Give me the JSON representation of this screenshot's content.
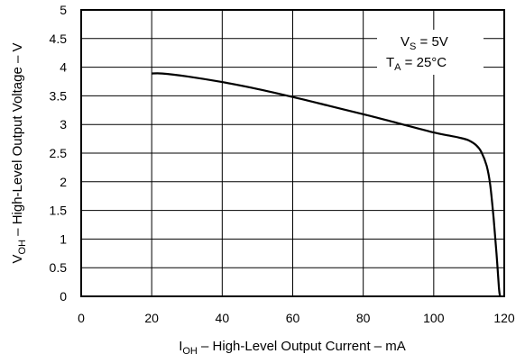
{
  "chart_data": {
    "type": "line",
    "xlabel": {
      "main": "I",
      "sub": "OH",
      "rest": " – High-Level Output Current – mA"
    },
    "ylabel": {
      "main": "V",
      "sub": "OH",
      "rest": " – High-Level Output Voltage – V"
    },
    "xlim": [
      0,
      120
    ],
    "ylim": [
      0,
      5
    ],
    "xticks": [
      0,
      20,
      40,
      60,
      80,
      100,
      120
    ],
    "yticks": [
      0,
      0.5,
      1,
      1.5,
      2,
      2.5,
      3,
      3.5,
      4,
      4.5,
      5
    ],
    "xtick_labels": [
      "0",
      "20",
      "40",
      "60",
      "80",
      "100",
      "120"
    ],
    "ytick_labels": [
      "0",
      "0.5",
      "1",
      "1.5",
      "2",
      "2.5",
      "3",
      "3.5",
      "4",
      "4.5",
      "5"
    ],
    "grid": true,
    "annotations": [
      {
        "main": "V",
        "sub": "S",
        "rest": " = 5V"
      },
      {
        "main": "T",
        "sub": "A",
        "rest": " = 25°C"
      }
    ],
    "series": [
      {
        "x": [
          20,
          23,
          30,
          40,
          50,
          60,
          70,
          80,
          90,
          100,
          104,
          108,
          110,
          112,
          113.5,
          115,
          116,
          117,
          117.8,
          118.5,
          118.8
        ],
        "y": [
          3.89,
          3.89,
          3.84,
          3.74,
          3.62,
          3.48,
          3.33,
          3.18,
          3.02,
          2.86,
          2.81,
          2.76,
          2.72,
          2.64,
          2.52,
          2.28,
          1.95,
          1.35,
          0.75,
          0.15,
          0.0
        ]
      }
    ]
  }
}
